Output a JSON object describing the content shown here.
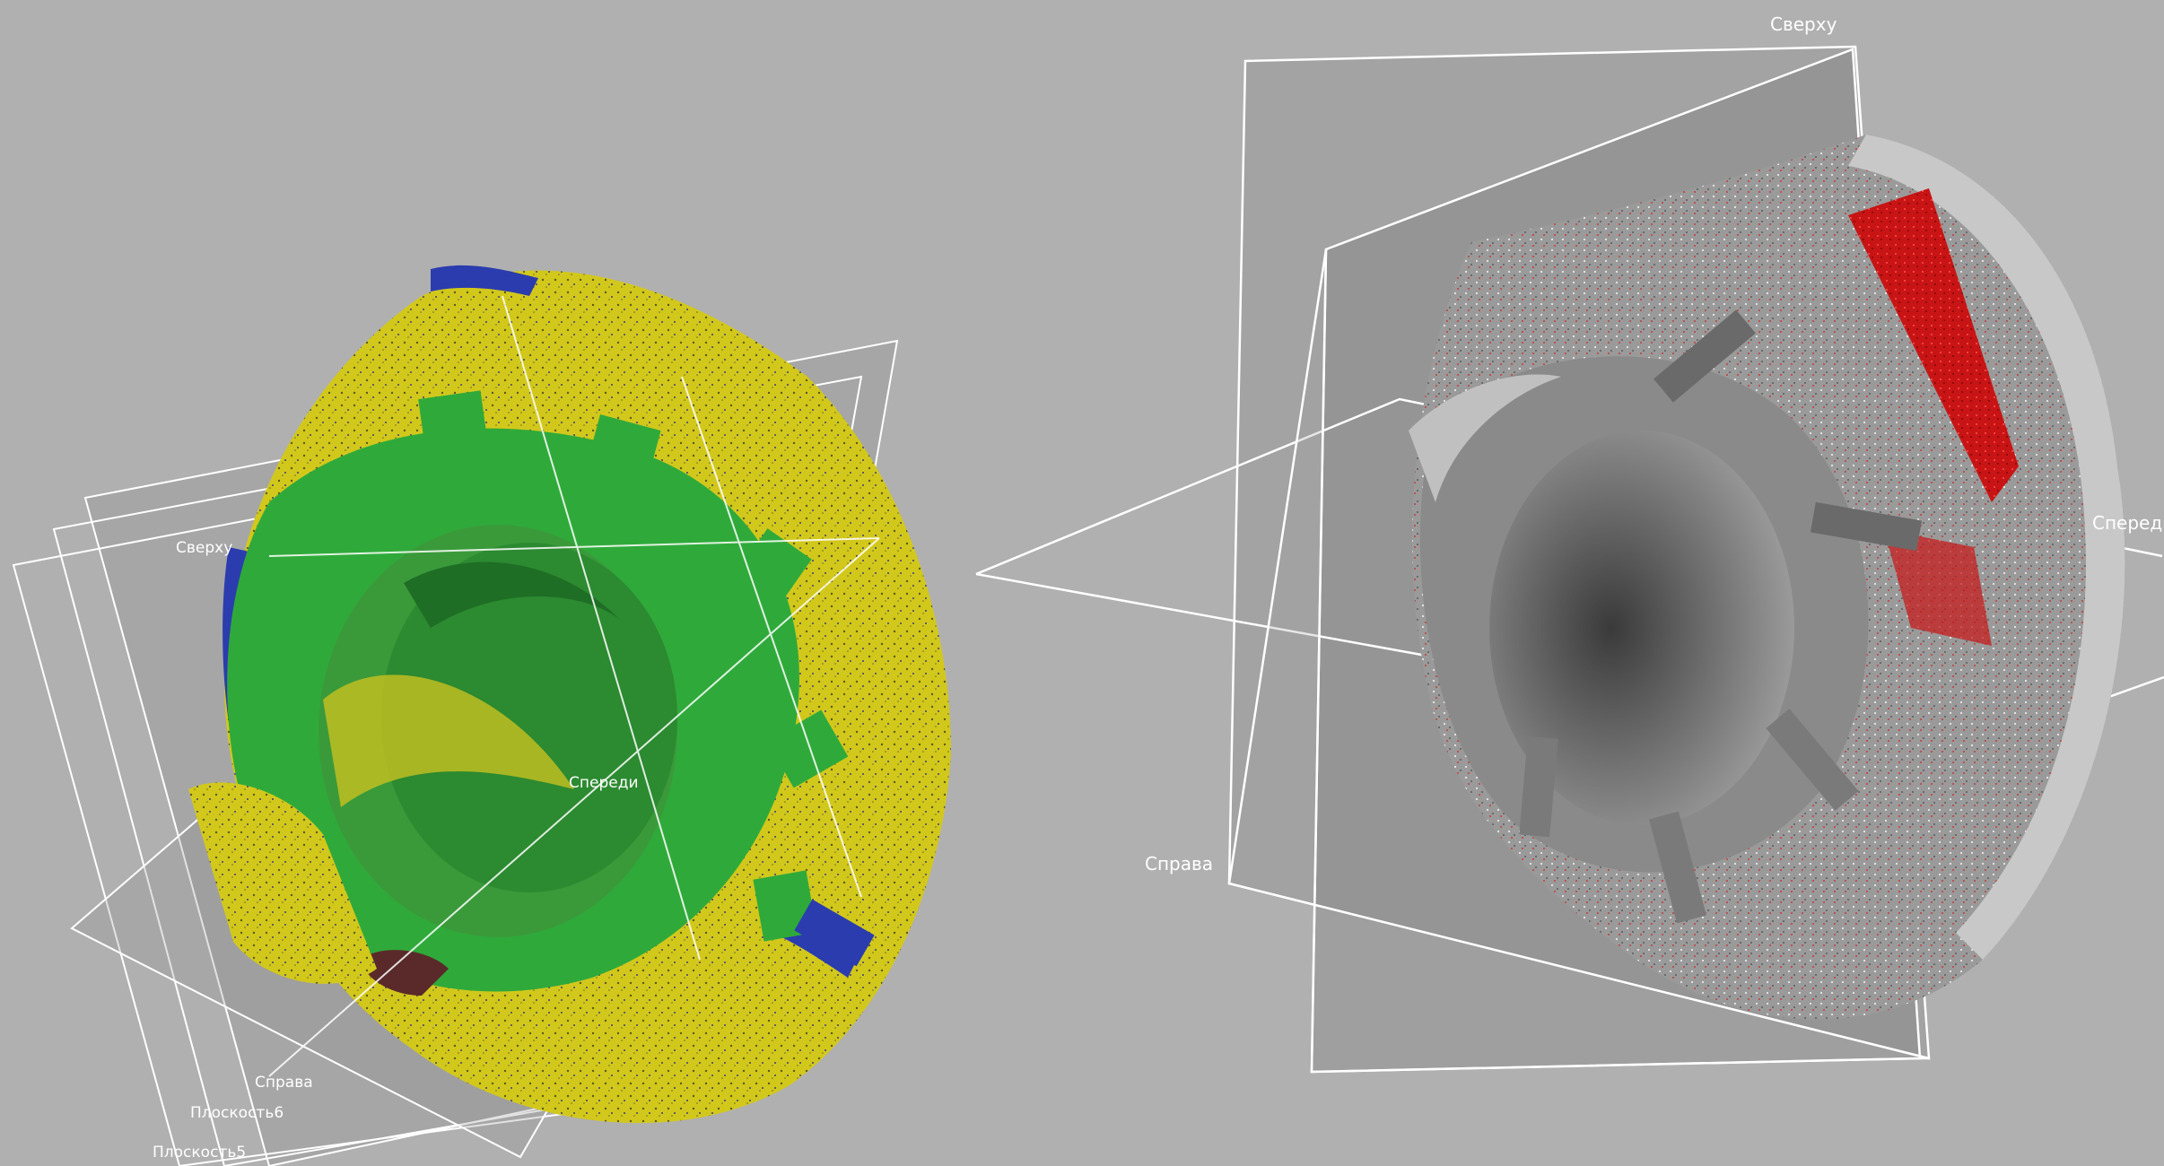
{
  "viewport": {
    "background_color": "#b0b0b0",
    "left_scan": {
      "colors": {
        "green": "#2faa3a",
        "yellow": "#d6cc1a",
        "blue": "#1d2fb4",
        "dark": "#5a2a2a"
      },
      "labels": {
        "top": "Сверху",
        "front": "Спереди",
        "right": "Справа",
        "plane6": "Плоскость6",
        "plane5": "Плоскость5"
      }
    },
    "right_scan": {
      "colors": {
        "gray": "#8e8e8e",
        "light": "#d8d8d8",
        "red": "#dd1010"
      },
      "labels": {
        "top": "Сверху",
        "front": "Спереди",
        "right": "Справа"
      }
    }
  }
}
